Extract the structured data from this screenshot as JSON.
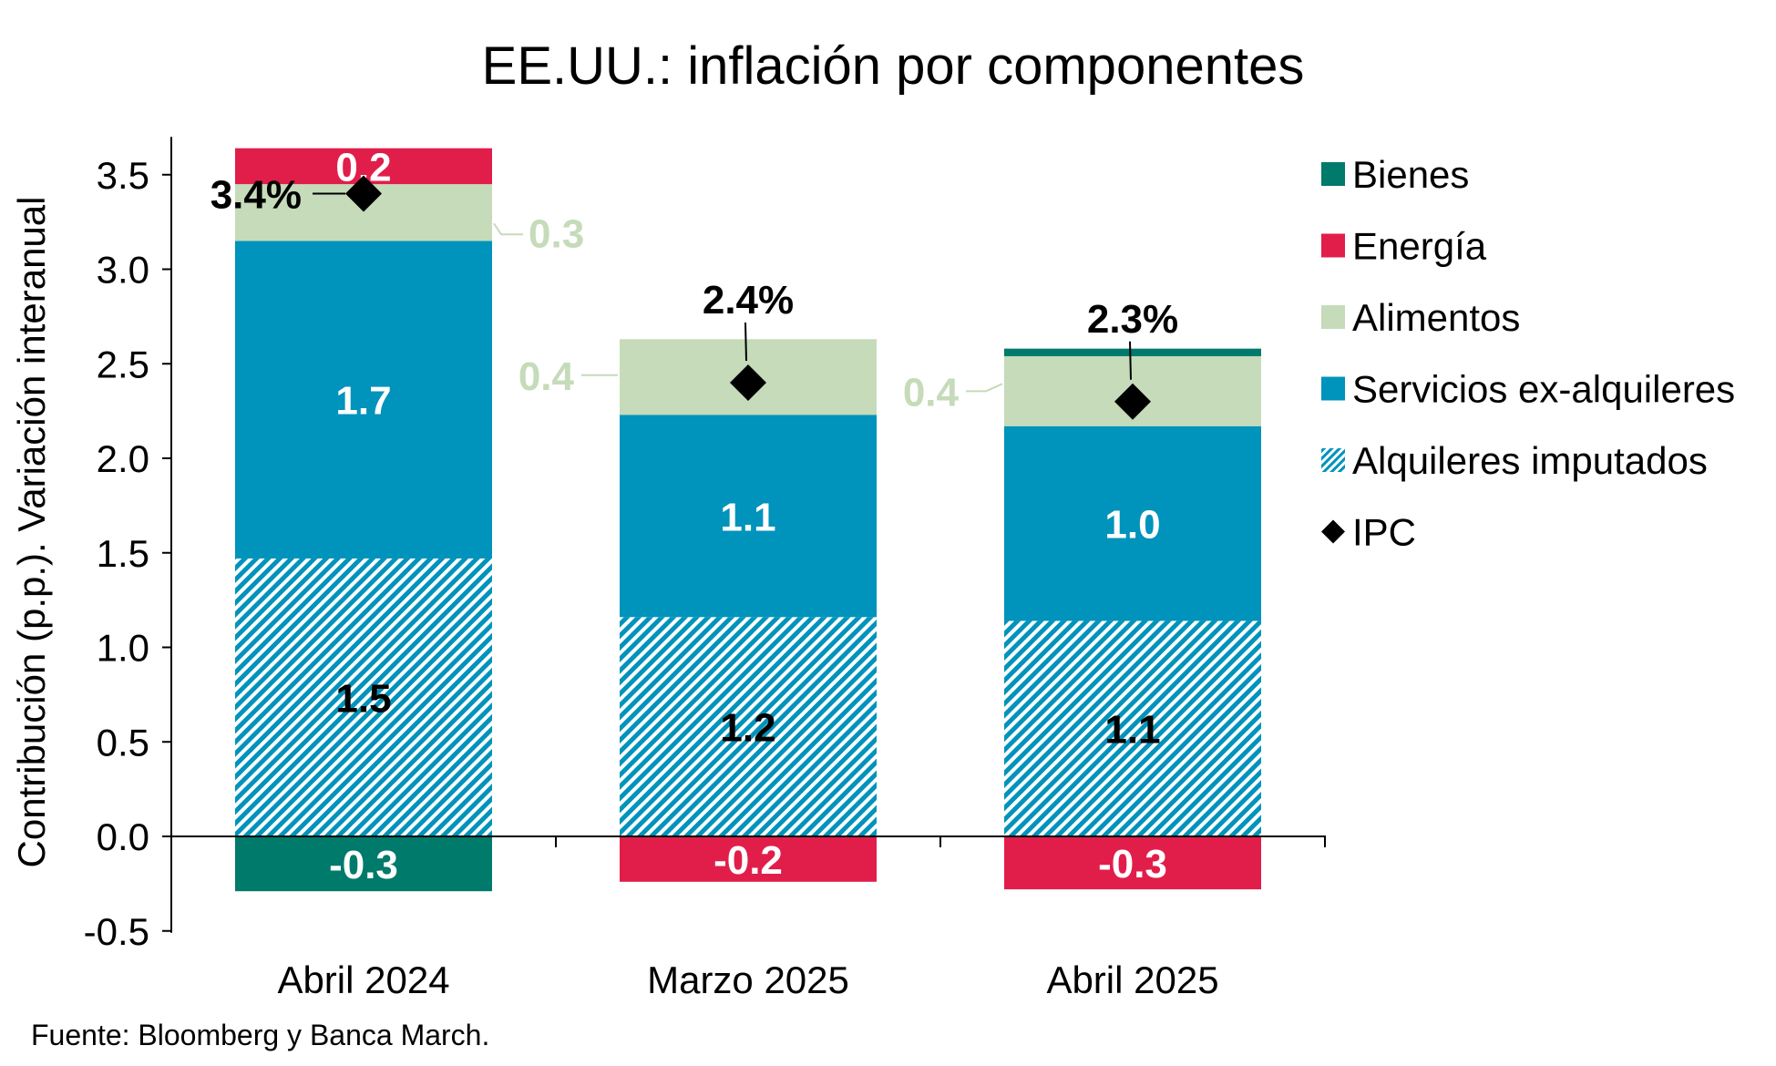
{
  "chart_data": {
    "type": "bar",
    "stacked": true,
    "title": "EE.UU.: inflación por componentes",
    "ylabel": "Contribución (p.p.). Variación interanual",
    "xlabel": "",
    "ylim": [
      -0.5,
      3.7
    ],
    "yticks": [
      "-0.5",
      "0.0",
      "0.5",
      "1.0",
      "1.5",
      "2.0",
      "2.5",
      "3.0",
      "3.5"
    ],
    "ytick_values": [
      -0.5,
      0.0,
      0.5,
      1.0,
      1.5,
      2.0,
      2.5,
      3.0,
      3.5
    ],
    "categories": [
      "Abril 2024",
      "Marzo 2025",
      "Abril 2025"
    ],
    "series": [
      {
        "name": "Alquileres imputados",
        "key": "alquileres",
        "color": "#0093BB",
        "pattern": "hatch",
        "values": [
          1.47,
          1.16,
          1.14
        ],
        "labels": [
          "1.5",
          "1.2",
          "1.1"
        ]
      },
      {
        "name": "Servicios ex-alquileres",
        "key": "servicios",
        "color": "#0093BB",
        "values": [
          1.68,
          1.07,
          1.03
        ],
        "labels": [
          "1.7",
          "1.1",
          "1.0"
        ]
      },
      {
        "name": "Alimentos",
        "key": "alimentos",
        "color": "#C5DBBA",
        "values": [
          0.3,
          0.4,
          0.37
        ],
        "labels": [
          "0.3",
          "0.4",
          "0.4"
        ]
      },
      {
        "name": "Energía",
        "key": "energia",
        "color": "#E11E4A",
        "values": [
          0.19,
          -0.24,
          -0.28
        ],
        "labels": [
          "0.2",
          "-0.2",
          "-0.3"
        ]
      },
      {
        "name": "Bienes",
        "key": "bienes",
        "color": "#007A6A",
        "values": [
          -0.29,
          0.0,
          0.04
        ],
        "labels": [
          "-0.3",
          "",
          ""
        ]
      }
    ],
    "ipc": {
      "name": "IPC",
      "values": [
        3.4,
        2.4,
        2.3
      ],
      "labels": [
        "3.4%",
        "2.4%",
        "2.3%"
      ]
    },
    "legend": [
      {
        "name": "Bienes",
        "key": "bienes"
      },
      {
        "name": "Energía",
        "key": "energia"
      },
      {
        "name": "Alimentos",
        "key": "alimentos"
      },
      {
        "name": "Servicios ex-alquileres",
        "key": "servicios"
      },
      {
        "name": "Alquileres imputados",
        "key": "alquileres"
      },
      {
        "name": "IPC",
        "key": "ipc"
      }
    ],
    "legend_position": "right",
    "source": "Fuente: Bloomberg y Banca March."
  }
}
